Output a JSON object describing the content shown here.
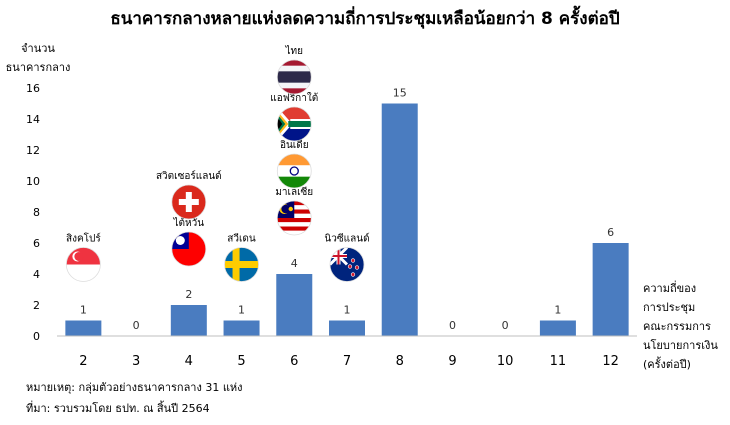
{
  "chart_data": {
    "type": "bar",
    "title": "ธนาคารกลางหลายแห่งลดความถี่การประชุมเหลือน้อยกว่า 8 ครั้งต่อปี",
    "ylabel": [
      "จำนวน",
      "ธนาคารกลาง"
    ],
    "xlabel": [
      "ความถี่ของ",
      "การประชุม",
      "คณะกรรมการ",
      "นโยบายการเงิน",
      "(ครั้งต่อปี)"
    ],
    "categories": [
      "2",
      "3",
      "4",
      "5",
      "6",
      "7",
      "8",
      "9",
      "10",
      "11",
      "12"
    ],
    "values": [
      1,
      0,
      2,
      1,
      4,
      1,
      15,
      0,
      0,
      1,
      6
    ],
    "ylim": [
      0,
      16
    ],
    "yticks": [
      0,
      2,
      4,
      6,
      8,
      10,
      12,
      14,
      16
    ],
    "grid": false,
    "bar_color": "#4A7CC0",
    "annotations": [
      {
        "category": "2",
        "stack": [
          {
            "label": "สิงคโปร์",
            "flag": "singapore-flag"
          }
        ]
      },
      {
        "category": "4",
        "stack": [
          {
            "label": "ไต้หวัน",
            "flag": "taiwan-flag"
          },
          {
            "label": "สวิตเซอร์แลนด์",
            "flag": "switzerland-flag"
          }
        ]
      },
      {
        "category": "5",
        "stack": [
          {
            "label": "สวีเดน",
            "flag": "sweden-flag"
          }
        ]
      },
      {
        "category": "6",
        "stack": [
          {
            "label": "มาเลเซีย",
            "flag": "malaysia-flag"
          },
          {
            "label": "อินเดีย",
            "flag": "india-flag"
          },
          {
            "label": "แอฟริกาใต้",
            "flag": "south-africa-flag"
          },
          {
            "label": "ไทย",
            "flag": "thailand-flag"
          }
        ]
      },
      {
        "category": "7",
        "stack": [
          {
            "label": "นิวซีแลนด์",
            "flag": "new-zealand-flag"
          }
        ]
      }
    ],
    "notes": [
      "หมายเหตุ: กลุ่มตัวอย่างธนาคารกลาง 31 แห่ง",
      "ที่มา: รวบรวมโดย ธปท. ณ สิ้นปี 2564"
    ]
  }
}
